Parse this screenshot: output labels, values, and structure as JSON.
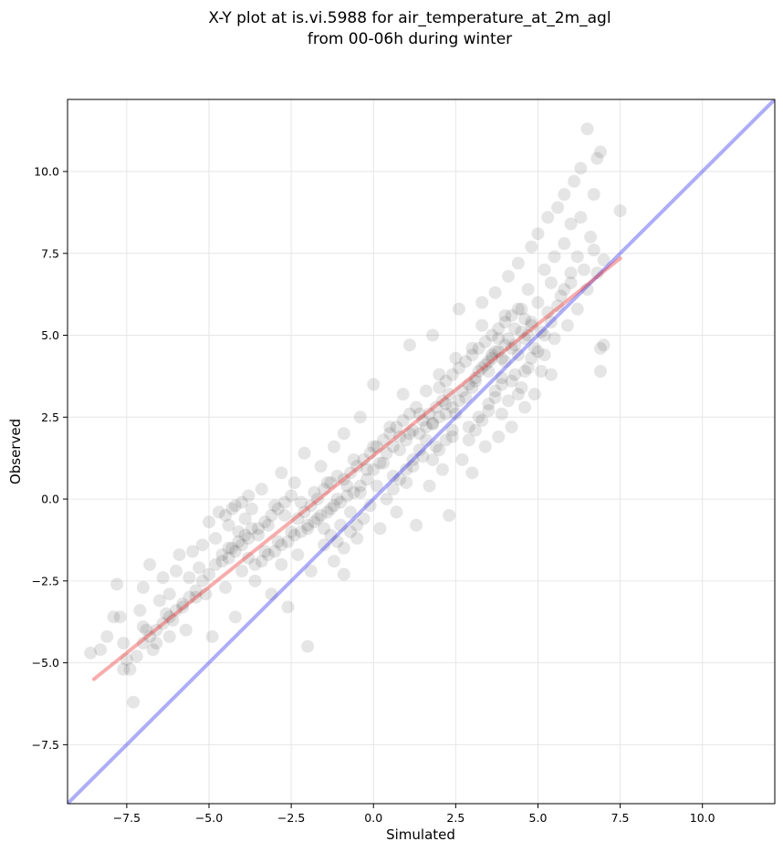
{
  "chart_data": {
    "type": "scatter",
    "title": "X-Y plot at is.vi.5988 for air_temperature_at_2m_agl",
    "subtitle": "from 00-06h during winter",
    "xlabel": "Simulated",
    "ylabel": "Observed",
    "xlim": [
      -9.3,
      12.2
    ],
    "ylim": [
      -9.3,
      12.2
    ],
    "grid": true,
    "x_ticks": [
      -7.5,
      -5.0,
      -2.5,
      0.0,
      2.5,
      5.0,
      7.5,
      10.0
    ],
    "y_ticks": [
      -7.5,
      -5.0,
      -2.5,
      0.0,
      2.5,
      5.0,
      7.5,
      10.0
    ],
    "x_tick_labels": [
      "−7.5",
      "−5.0",
      "−2.5",
      "0.0",
      "2.5",
      "5.0",
      "7.5",
      "10.0"
    ],
    "y_tick_labels": [
      "−7.5",
      "−5.0",
      "−2.5",
      "0.0",
      "2.5",
      "5.0",
      "7.5",
      "10.0"
    ],
    "point_color": "#000000",
    "point_opacity": 0.1,
    "fit_line": {
      "color": "#ee3333",
      "x": [
        -8.5,
        7.5
      ],
      "y": [
        -5.5,
        7.35
      ]
    },
    "identity_line": {
      "color": "#3333ee",
      "x": [
        -9.3,
        12.2
      ],
      "y": [
        -9.3,
        12.2
      ]
    },
    "points": [
      [
        -8.6,
        -4.7
      ],
      [
        -8.3,
        -4.6
      ],
      [
        -8.1,
        -4.2
      ],
      [
        -7.8,
        -2.6
      ],
      [
        -7.7,
        -3.6
      ],
      [
        -7.9,
        -3.6
      ],
      [
        -7.6,
        -4.4
      ],
      [
        -7.5,
        -4.9
      ],
      [
        -7.4,
        -5.2
      ],
      [
        -7.6,
        -5.2
      ],
      [
        -7.3,
        -6.2
      ],
      [
        -7.2,
        -4.8
      ],
      [
        -7.1,
        -3.4
      ],
      [
        -7.0,
        -2.7
      ],
      [
        -7.0,
        -3.9
      ],
      [
        -6.9,
        -4.0
      ],
      [
        -6.8,
        -2.0
      ],
      [
        -6.7,
        -4.6
      ],
      [
        -6.6,
        -4.4
      ],
      [
        -6.5,
        -3.1
      ],
      [
        -6.4,
        -2.4
      ],
      [
        -6.3,
        -3.5
      ],
      [
        -6.2,
        -4.2
      ],
      [
        -6.2,
        -2.9
      ],
      [
        -6.1,
        -3.7
      ],
      [
        -6.0,
        -2.2
      ],
      [
        -5.9,
        -1.7
      ],
      [
        -5.8,
        -3.3
      ],
      [
        -5.7,
        -4.0
      ],
      [
        -5.6,
        -2.4
      ],
      [
        -5.5,
        -1.6
      ],
      [
        -5.4,
        -3.0
      ],
      [
        -5.3,
        -2.1
      ],
      [
        -5.2,
        -1.4
      ],
      [
        -5.1,
        -2.9
      ],
      [
        -5.0,
        -0.7
      ],
      [
        -5.0,
        -2.3
      ],
      [
        -4.9,
        -4.2
      ],
      [
        -4.8,
        -1.2
      ],
      [
        -4.7,
        -0.4
      ],
      [
        -4.6,
        -1.9
      ],
      [
        -4.5,
        -2.7
      ],
      [
        -4.4,
        -0.8
      ],
      [
        -4.3,
        -1.5
      ],
      [
        -4.2,
        -0.2
      ],
      [
        -4.2,
        -3.6
      ],
      [
        -4.1,
        -1.0
      ],
      [
        -4.0,
        -2.2
      ],
      [
        -3.9,
        -0.6
      ],
      [
        -3.8,
        -1.8
      ],
      [
        -3.7,
        -0.3
      ],
      [
        -3.6,
        -2.5
      ],
      [
        -3.5,
        -1.1
      ],
      [
        -3.4,
        0.3
      ],
      [
        -3.3,
        -1.6
      ],
      [
        -3.2,
        -0.8
      ],
      [
        -3.1,
        -2.9
      ],
      [
        -3.0,
        -0.2
      ],
      [
        -2.9,
        -1.3
      ],
      [
        -2.8,
        0.8
      ],
      [
        -2.8,
        -2.0
      ],
      [
        -2.7,
        -0.5
      ],
      [
        -2.6,
        -3.3
      ],
      [
        -2.5,
        -1.0
      ],
      [
        -2.4,
        0.5
      ],
      [
        -2.3,
        -1.7
      ],
      [
        -2.2,
        -0.1
      ],
      [
        -2.1,
        1.4
      ],
      [
        -2.0,
        -0.9
      ],
      [
        -2.0,
        -4.5
      ],
      [
        -1.9,
        -2.2
      ],
      [
        -1.8,
        0.2
      ],
      [
        -1.7,
        -0.6
      ],
      [
        -1.6,
        1.0
      ],
      [
        -1.5,
        -1.4
      ],
      [
        -1.4,
        0.5
      ],
      [
        -1.3,
        -0.3
      ],
      [
        -1.2,
        1.6
      ],
      [
        -1.2,
        -1.9
      ],
      [
        -1.1,
        0.0
      ],
      [
        -1.0,
        -0.8
      ],
      [
        -0.9,
        2.0
      ],
      [
        -0.9,
        -2.3
      ],
      [
        -0.8,
        0.4
      ],
      [
        -0.7,
        -0.4
      ],
      [
        -0.6,
        1.2
      ],
      [
        -0.5,
        -1.2
      ],
      [
        -0.4,
        0.2
      ],
      [
        -0.4,
        2.5
      ],
      [
        -0.3,
        -0.6
      ],
      [
        -0.2,
        0.9
      ],
      [
        -0.1,
        -0.2
      ],
      [
        0.0,
        1.6
      ],
      [
        0.0,
        3.5
      ],
      [
        0.1,
        0.4
      ],
      [
        0.2,
        -0.9
      ],
      [
        0.3,
        1.1
      ],
      [
        0.4,
        0.0
      ],
      [
        0.5,
        2.2
      ],
      [
        0.6,
        0.7
      ],
      [
        0.7,
        -0.4
      ],
      [
        0.8,
        1.5
      ],
      [
        0.9,
        3.2
      ],
      [
        1.0,
        0.5
      ],
      [
        1.1,
        2.0
      ],
      [
        1.1,
        4.7
      ],
      [
        1.2,
        1.0
      ],
      [
        1.3,
        -0.8
      ],
      [
        1.4,
        2.6
      ],
      [
        1.5,
        1.3
      ],
      [
        1.6,
        3.3
      ],
      [
        1.7,
        0.4
      ],
      [
        1.8,
        2.3
      ],
      [
        1.8,
        5.0
      ],
      [
        1.9,
        1.6
      ],
      [
        2.0,
        3.8
      ],
      [
        2.1,
        0.9
      ],
      [
        2.2,
        2.9
      ],
      [
        2.3,
        -0.5
      ],
      [
        2.4,
        1.9
      ],
      [
        2.5,
        4.3
      ],
      [
        2.5,
        2.6
      ],
      [
        2.6,
        5.8
      ],
      [
        2.7,
        1.2
      ],
      [
        2.8,
        3.1
      ],
      [
        2.9,
        2.2
      ],
      [
        3.0,
        4.6
      ],
      [
        3.0,
        0.8
      ],
      [
        3.1,
        3.6
      ],
      [
        3.2,
        2.5
      ],
      [
        3.3,
        5.3
      ],
      [
        3.3,
        6.0
      ],
      [
        3.4,
        1.6
      ],
      [
        3.5,
        3.9
      ],
      [
        3.5,
        2.9
      ],
      [
        3.6,
        4.4
      ],
      [
        3.7,
        6.3
      ],
      [
        3.7,
        3.3
      ],
      [
        3.8,
        1.9
      ],
      [
        3.8,
        4.9
      ],
      [
        3.9,
        2.6
      ],
      [
        3.9,
        3.7
      ],
      [
        4.0,
        5.6
      ],
      [
        4.0,
        4.2
      ],
      [
        4.1,
        3.0
      ],
      [
        4.1,
        6.8
      ],
      [
        4.2,
        4.6
      ],
      [
        4.2,
        2.2
      ],
      [
        4.3,
        3.8
      ],
      [
        4.3,
        5.2
      ],
      [
        4.4,
        4.4
      ],
      [
        4.4,
        7.2
      ],
      [
        4.5,
        3.4
      ],
      [
        4.5,
        5.8
      ],
      [
        4.6,
        4.9
      ],
      [
        4.6,
        2.8
      ],
      [
        4.7,
        6.4
      ],
      [
        4.7,
        4.0
      ],
      [
        4.8,
        5.4
      ],
      [
        4.8,
        7.7
      ],
      [
        4.9,
        4.6
      ],
      [
        4.9,
        3.2
      ],
      [
        5.0,
        6.0
      ],
      [
        5.0,
        8.1
      ],
      [
        5.1,
        5.1
      ],
      [
        5.1,
        3.9
      ],
      [
        5.2,
        7.0
      ],
      [
        5.2,
        4.4
      ],
      [
        5.3,
        8.6
      ],
      [
        5.3,
        5.7
      ],
      [
        5.4,
        6.6
      ],
      [
        5.4,
        3.8
      ],
      [
        5.5,
        7.4
      ],
      [
        5.5,
        4.9
      ],
      [
        5.6,
        8.9
      ],
      [
        5.7,
        6.2
      ],
      [
        5.8,
        7.8
      ],
      [
        5.8,
        9.3
      ],
      [
        5.9,
        5.3
      ],
      [
        6.0,
        8.4
      ],
      [
        6.0,
        6.9
      ],
      [
        6.1,
        9.7
      ],
      [
        6.2,
        7.4
      ],
      [
        6.2,
        5.8
      ],
      [
        6.3,
        8.6
      ],
      [
        6.3,
        10.1
      ],
      [
        6.4,
        7.0
      ],
      [
        6.5,
        11.3
      ],
      [
        6.5,
        6.4
      ],
      [
        6.6,
        8.0
      ],
      [
        6.7,
        9.3
      ],
      [
        6.7,
        7.6
      ],
      [
        6.8,
        10.4
      ],
      [
        6.8,
        6.9
      ],
      [
        6.9,
        4.6
      ],
      [
        6.9,
        3.9
      ],
      [
        7.0,
        4.7
      ],
      [
        7.0,
        7.3
      ],
      [
        7.5,
        8.8
      ],
      [
        6.9,
        10.6
      ],
      [
        2.9,
        3.5
      ],
      [
        3.2,
        3.9
      ],
      [
        3.4,
        4.1
      ],
      [
        3.6,
        4.3
      ],
      [
        3.8,
        4.5
      ],
      [
        4.0,
        4.7
      ],
      [
        3.3,
        4.0
      ],
      [
        3.5,
        4.2
      ],
      [
        3.7,
        4.5
      ],
      [
        3.9,
        4.3
      ],
      [
        3.1,
        3.7
      ],
      [
        3.0,
        3.4
      ],
      [
        2.7,
        3.3
      ],
      [
        2.6,
        3.0
      ],
      [
        2.4,
        2.8
      ],
      [
        2.2,
        2.6
      ],
      [
        2.0,
        2.5
      ],
      [
        1.8,
        2.3
      ],
      [
        1.6,
        2.2
      ],
      [
        1.4,
        2.0
      ],
      [
        1.5,
        2.4
      ],
      [
        1.7,
        2.6
      ],
      [
        1.9,
        2.8
      ],
      [
        2.1,
        3.0
      ],
      [
        2.3,
        3.2
      ],
      [
        1.2,
        2.1
      ],
      [
        1.0,
        1.8
      ],
      [
        0.8,
        1.9
      ],
      [
        0.6,
        1.6
      ],
      [
        0.4,
        1.4
      ],
      [
        0.2,
        1.1
      ],
      [
        0.0,
        0.9
      ],
      [
        -0.2,
        0.6
      ],
      [
        -0.4,
        0.4
      ],
      [
        -0.6,
        0.2
      ],
      [
        -0.8,
        0.1
      ],
      [
        -1.0,
        -0.1
      ],
      [
        -1.2,
        -0.2
      ],
      [
        -1.4,
        -0.4
      ],
      [
        -1.6,
        -0.5
      ],
      [
        -1.8,
        -0.7
      ],
      [
        -2.0,
        -0.8
      ],
      [
        -2.2,
        -1.0
      ],
      [
        -2.4,
        -1.1
      ],
      [
        -2.6,
        -1.3
      ],
      [
        -2.8,
        -1.4
      ],
      [
        -3.0,
        -1.6
      ],
      [
        -3.2,
        -1.7
      ],
      [
        -3.4,
        -1.9
      ],
      [
        -3.6,
        -2.0
      ],
      [
        -3.8,
        -1.2
      ],
      [
        -4.0,
        -1.4
      ],
      [
        -4.2,
        -1.6
      ],
      [
        -4.4,
        -1.8
      ],
      [
        -3.5,
        -0.9
      ],
      [
        -3.3,
        -0.7
      ],
      [
        -3.1,
        -0.5
      ],
      [
        -2.9,
        -0.3
      ],
      [
        -2.7,
        -0.1
      ],
      [
        -2.5,
        0.1
      ],
      [
        -1.5,
        0.3
      ],
      [
        -1.3,
        0.5
      ],
      [
        -1.1,
        0.7
      ],
      [
        -0.9,
        0.6
      ],
      [
        -0.7,
        0.8
      ],
      [
        -0.5,
        1.0
      ],
      [
        -0.3,
        1.2
      ],
      [
        -0.1,
        1.4
      ],
      [
        0.1,
        1.6
      ],
      [
        0.3,
        1.8
      ],
      [
        0.5,
        2.0
      ],
      [
        0.7,
        2.2
      ],
      [
        0.9,
        2.4
      ],
      [
        1.1,
        2.6
      ],
      [
        1.3,
        2.8
      ],
      [
        2.0,
        3.4
      ],
      [
        2.2,
        3.6
      ],
      [
        2.4,
        3.8
      ],
      [
        2.6,
        4.0
      ],
      [
        2.8,
        4.2
      ],
      [
        3.0,
        4.4
      ],
      [
        3.2,
        4.6
      ],
      [
        3.4,
        4.8
      ],
      [
        3.6,
        5.0
      ],
      [
        3.8,
        5.2
      ],
      [
        4.0,
        5.4
      ],
      [
        4.2,
        5.6
      ],
      [
        4.4,
        5.8
      ],
      [
        4.6,
        5.5
      ],
      [
        4.8,
        5.3
      ],
      [
        4.1,
        4.9
      ],
      [
        4.3,
        4.7
      ],
      [
        4.5,
        5.1
      ],
      [
        4.7,
        5.0
      ],
      [
        3.9,
        3.5
      ],
      [
        3.7,
        3.1
      ],
      [
        3.5,
        2.7
      ],
      [
        3.3,
        2.4
      ],
      [
        3.1,
        2.1
      ],
      [
        2.9,
        1.8
      ],
      [
        4.2,
        3.6
      ],
      [
        4.4,
        3.2
      ],
      [
        4.6,
        3.9
      ],
      [
        4.8,
        4.3
      ],
      [
        5.0,
        4.5
      ],
      [
        5.2,
        5.0
      ],
      [
        5.4,
        5.4
      ],
      [
        5.6,
        5.9
      ],
      [
        5.8,
        6.4
      ],
      [
        6.0,
        6.6
      ],
      [
        -5.2,
        -2.5
      ],
      [
        -5.4,
        -2.8
      ],
      [
        -5.6,
        -3.0
      ],
      [
        -5.8,
        -3.2
      ],
      [
        -6.0,
        -3.4
      ],
      [
        -6.2,
        -3.6
      ],
      [
        -6.4,
        -3.8
      ],
      [
        -6.6,
        -4.0
      ],
      [
        -6.8,
        -4.2
      ],
      [
        -7.0,
        -4.4
      ],
      [
        -4.8,
        -2.0
      ],
      [
        -4.6,
        -1.7
      ],
      [
        -4.4,
        -1.5
      ],
      [
        -4.1,
        -1.3
      ],
      [
        -3.9,
        -1.1
      ],
      [
        -3.7,
        -0.9
      ],
      [
        -4.5,
        -0.5
      ],
      [
        -4.3,
        -0.3
      ],
      [
        -4.0,
        -0.1
      ],
      [
        -3.8,
        0.1
      ],
      [
        -2.3,
        -0.6
      ],
      [
        -2.1,
        -0.4
      ],
      [
        -1.9,
        -0.2
      ],
      [
        -1.7,
        0.0
      ],
      [
        -1.5,
        -0.9
      ],
      [
        -1.3,
        -1.1
      ],
      [
        -1.1,
        -1.3
      ],
      [
        -0.9,
        -1.5
      ],
      [
        -0.7,
        -1.0
      ],
      [
        -0.5,
        -0.8
      ],
      [
        0.6,
        0.3
      ],
      [
        0.8,
        0.6
      ],
      [
        1.0,
        0.9
      ],
      [
        1.2,
        1.2
      ],
      [
        1.4,
        1.5
      ],
      [
        1.6,
        1.8
      ],
      [
        1.8,
        1.2
      ],
      [
        2.0,
        1.5
      ],
      [
        2.2,
        1.8
      ],
      [
        2.4,
        2.1
      ]
    ]
  }
}
